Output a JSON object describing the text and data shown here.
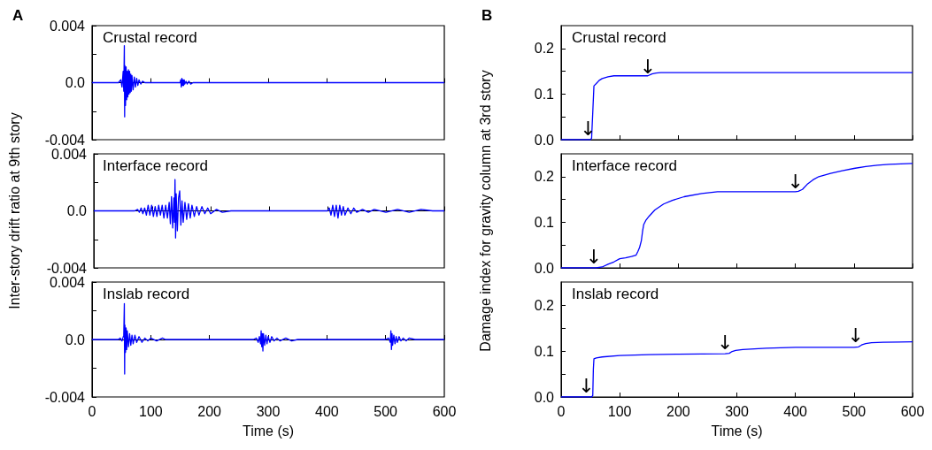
{
  "chart_data": [
    {
      "type": "line",
      "title": "A",
      "subtitle": "Crustal record",
      "xlim": [
        0,
        600
      ],
      "xticks": [
        0,
        100,
        200,
        300,
        400,
        500,
        600
      ],
      "ylim": [
        -0.004,
        0.004
      ],
      "yticks": [
        -0.004,
        {
          "value": -0.002,
          "label": null
        },
        {
          "value": 0,
          "label": "0.0"
        },
        {
          "value": 0.002,
          "label": null
        },
        0.004
      ],
      "tick_labels": "y",
      "marker": "none",
      "series": [
        {
          "color": "#0000ff",
          "x": [
            0,
            45,
            49,
            51,
            53,
            54,
            55,
            55.5,
            56,
            57,
            58,
            59,
            60,
            61,
            62,
            63,
            64,
            65,
            66,
            67,
            68,
            70,
            72,
            74,
            76,
            78,
            80,
            83,
            86,
            90,
            150,
            151,
            152,
            153,
            154,
            155,
            156,
            157,
            158,
            160,
            162,
            165,
            168,
            172,
            600
          ],
          "values": [
            0,
            0,
            0.0002,
            -0.0003,
            0.0008,
            -0.0006,
            0.0026,
            -0.0024,
            0.0012,
            -0.0016,
            0.0011,
            -0.0012,
            0.0008,
            -0.001,
            0.0009,
            -0.0008,
            0.0008,
            -0.0007,
            0.0006,
            -0.0006,
            0.0005,
            -0.0005,
            0.0004,
            -0.0003,
            0.0003,
            -0.0002,
            0.0002,
            -0.0001,
            0.0001,
            0,
            0,
            0.0002,
            -0.0003,
            0.0003,
            -0.0002,
            0.0002,
            -0.0002,
            0.0002,
            -0.0001,
            0.0001,
            -0.0001,
            0.0001,
            -0.0001,
            0,
            0
          ]
        }
      ]
    },
    {
      "type": "line",
      "subtitle": "Interface record",
      "ylabel": "Inter-story drift ratio at 9th story",
      "xlim": [
        0,
        600
      ],
      "xticks": [
        0,
        100,
        200,
        300,
        400,
        500,
        600
      ],
      "ylim": [
        -0.004,
        0.004
      ],
      "yticks": [
        -0.004,
        {
          "value": -0.002,
          "label": null
        },
        {
          "value": 0,
          "label": "0.0"
        },
        {
          "value": 0.002,
          "label": null
        },
        0.004
      ],
      "tick_labels": "y",
      "marker": "none",
      "series": [
        {
          "color": "#0000ff",
          "x": [
            0,
            70,
            75,
            78,
            81,
            84,
            87,
            90,
            93,
            96,
            99,
            102,
            105,
            108,
            111,
            114,
            117,
            120,
            123,
            126,
            129,
            131,
            133,
            135,
            137,
            138,
            139,
            140,
            141,
            143,
            145,
            147,
            149,
            151,
            153,
            156,
            159,
            162,
            165,
            168,
            172,
            176,
            180,
            185,
            190,
            195,
            200,
            210,
            220,
            235,
            400,
            403,
            406,
            409,
            412,
            415,
            418,
            421,
            424,
            427,
            430,
            435,
            440,
            445,
            450,
            460,
            470,
            480,
            500,
            520,
            540,
            560,
            580,
            600
          ],
          "values": [
            0,
            0,
            0.0001,
            -0.0001,
            0.0002,
            -0.0002,
            0.0002,
            -0.0003,
            0.0004,
            -0.0003,
            0.0004,
            -0.0004,
            0.0003,
            -0.0004,
            0.0004,
            -0.0003,
            0.0004,
            -0.0005,
            0.0004,
            -0.0005,
            0.0006,
            -0.0009,
            0.001,
            -0.0012,
            0.0009,
            -0.0008,
            0.0022,
            -0.0019,
            0.0012,
            -0.0014,
            0.0009,
            0.0014,
            -0.001,
            0.0007,
            -0.0008,
            0.0006,
            -0.0006,
            0.0005,
            -0.0005,
            0.0004,
            -0.0004,
            0.0003,
            -0.0003,
            0.0003,
            -0.0002,
            0.0002,
            -0.0002,
            0.0001,
            -0.0001,
            0,
            0,
            0.0002,
            -0.0003,
            0.0004,
            -0.0004,
            0.0004,
            -0.0005,
            0.0004,
            -0.0003,
            0.0003,
            -0.0003,
            0.0002,
            -0.0002,
            0.0002,
            -0.0001,
            0.0001,
            -0.0001,
            0.0001,
            -0.0001,
            0.0001,
            -0.0001,
            0.0001,
            0,
            0
          ]
        }
      ]
    },
    {
      "type": "line",
      "subtitle": "Inslab record",
      "xlabel": "Time (s)",
      "xlim": [
        0,
        600
      ],
      "xticks": [
        0,
        100,
        200,
        300,
        400,
        500,
        600
      ],
      "ylim": [
        -0.004,
        0.004
      ],
      "yticks": [
        -0.004,
        {
          "value": -0.002,
          "label": null
        },
        {
          "value": 0,
          "label": "0.0"
        },
        {
          "value": 0.002,
          "label": null
        },
        0.004
      ],
      "marker": "none",
      "series": [
        {
          "color": "#0000ff",
          "x": [
            0,
            45,
            48,
            51,
            54,
            55,
            55.5,
            56,
            57,
            58,
            59,
            60,
            62,
            64,
            66,
            68,
            70,
            73,
            76,
            80,
            85,
            90,
            95,
            100,
            110,
            120,
            125,
            275,
            280,
            283,
            285,
            287,
            288,
            289,
            290,
            291,
            292,
            294,
            296,
            298,
            300,
            303,
            306,
            310,
            315,
            320,
            330,
            340,
            350,
            500,
            505,
            508,
            509,
            510,
            511,
            512,
            514,
            516,
            518,
            520,
            523,
            526,
            530,
            535,
            540,
            550,
            600
          ],
          "values": [
            0,
            0,
            0.0001,
            -0.0001,
            0.0003,
            0.0025,
            -0.0024,
            0.001,
            -0.0009,
            0.0008,
            -0.0007,
            0.0006,
            -0.0005,
            0.0004,
            -0.0004,
            0.0003,
            -0.0003,
            0.0003,
            -0.0002,
            0.0002,
            -0.0002,
            0.0001,
            -0.0001,
            0.0001,
            -0.0001,
            0.0001,
            0,
            0,
            0.0001,
            -0.0002,
            0.0002,
            -0.0003,
            0.0006,
            -0.0005,
            0.0004,
            -0.0008,
            0.0004,
            -0.0004,
            0.0003,
            -0.0003,
            0.0002,
            -0.0002,
            0.0002,
            -0.0001,
            0.0001,
            -0.0001,
            0.0001,
            -0.0001,
            0,
            0,
            0.0001,
            -0.0002,
            0.0006,
            -0.0007,
            0.0004,
            -0.0004,
            0.0003,
            -0.0003,
            0.0002,
            -0.0002,
            0.0002,
            -0.0001,
            0.0001,
            -0.0001,
            0.0001,
            0,
            0
          ]
        }
      ]
    },
    {
      "type": "line",
      "title": "B",
      "subtitle": "Crustal record",
      "xlim": [
        0,
        600
      ],
      "xticks": [
        0,
        100,
        200,
        300,
        400,
        500,
        600
      ],
      "ylim": [
        0,
        0.25
      ],
      "yticks": [
        {
          "value": 0,
          "label": "0.0"
        },
        {
          "value": 0.05,
          "label": null
        },
        0.1,
        {
          "value": 0.15,
          "label": null
        },
        0.2
      ],
      "tick_labels": "y",
      "marker": "none",
      "annotations": [
        {
          "text": "↓",
          "x": 46,
          "y": 0.01
        },
        {
          "text": "↓",
          "x": 148,
          "y": 0.147
        }
      ],
      "series": [
        {
          "color": "#0000ff",
          "x": [
            0,
            50,
            52,
            54,
            56,
            60,
            65,
            70,
            80,
            90,
            100,
            148,
            155,
            162,
            170,
            600
          ],
          "values": [
            0,
            0,
            0.003,
            0.06,
            0.118,
            0.123,
            0.13,
            0.134,
            0.138,
            0.14,
            0.14,
            0.14,
            0.144,
            0.146,
            0.147,
            0.147
          ]
        }
      ]
    },
    {
      "type": "line",
      "subtitle": "Interface record",
      "ylabel": "Damage index for gravity column at 3rd story",
      "xlim": [
        0,
        600
      ],
      "xticks": [
        0,
        100,
        200,
        300,
        400,
        500,
        600
      ],
      "ylim": [
        0,
        0.25
      ],
      "yticks": [
        {
          "value": 0,
          "label": "0.0"
        },
        {
          "value": 0.05,
          "label": null
        },
        0.1,
        {
          "value": 0.15,
          "label": null
        },
        0.2
      ],
      "tick_labels": "y",
      "marker": "none",
      "annotations": [
        {
          "text": "↓",
          "x": 56,
          "y": 0.01
        },
        {
          "text": "↓",
          "x": 400,
          "y": 0.175
        }
      ],
      "series": [
        {
          "color": "#0000ff",
          "x": [
            0,
            60,
            70,
            80,
            90,
            100,
            110,
            120,
            128,
            131,
            134,
            137,
            139,
            141,
            145,
            150,
            160,
            175,
            190,
            210,
            240,
            267,
            300,
            350,
            400,
            405,
            412,
            420,
            430,
            440,
            460,
            480,
            500,
            520,
            540,
            560,
            580,
            600
          ],
          "values": [
            0,
            0,
            0.002,
            0.008,
            0.013,
            0.02,
            0.022,
            0.025,
            0.028,
            0.036,
            0.045,
            0.06,
            0.08,
            0.095,
            0.105,
            0.113,
            0.127,
            0.14,
            0.148,
            0.156,
            0.163,
            0.167,
            0.167,
            0.167,
            0.167,
            0.168,
            0.172,
            0.183,
            0.193,
            0.2,
            0.207,
            0.213,
            0.218,
            0.222,
            0.225,
            0.227,
            0.228,
            0.229
          ]
        }
      ]
    },
    {
      "type": "line",
      "subtitle": "Inslab record",
      "xlabel": "Time (s)",
      "xlim": [
        0,
        600
      ],
      "xticks": [
        0,
        100,
        200,
        300,
        400,
        500,
        600
      ],
      "ylim": [
        0,
        0.25
      ],
      "yticks": [
        {
          "value": 0,
          "label": "0.0"
        },
        {
          "value": 0.05,
          "label": null
        },
        0.1,
        {
          "value": 0.15,
          "label": null
        },
        0.2
      ],
      "marker": "none",
      "annotations": [
        {
          "text": "↓",
          "x": 43,
          "y": 0.01
        },
        {
          "text": "↓",
          "x": 280,
          "y": 0.105
        },
        {
          "text": "↓",
          "x": 503,
          "y": 0.12
        }
      ],
      "series": [
        {
          "color": "#0000ff",
          "x": [
            0,
            52,
            54,
            55,
            56,
            60,
            70,
            100,
            150,
            200,
            280,
            287,
            292,
            298,
            310,
            350,
            400,
            500,
            508,
            513,
            520,
            530,
            550,
            600
          ],
          "values": [
            0,
            0,
            0.003,
            0.06,
            0.083,
            0.085,
            0.087,
            0.09,
            0.092,
            0.093,
            0.094,
            0.095,
            0.099,
            0.101,
            0.103,
            0.106,
            0.108,
            0.108,
            0.109,
            0.113,
            0.116,
            0.118,
            0.119,
            0.12
          ]
        }
      ]
    }
  ]
}
